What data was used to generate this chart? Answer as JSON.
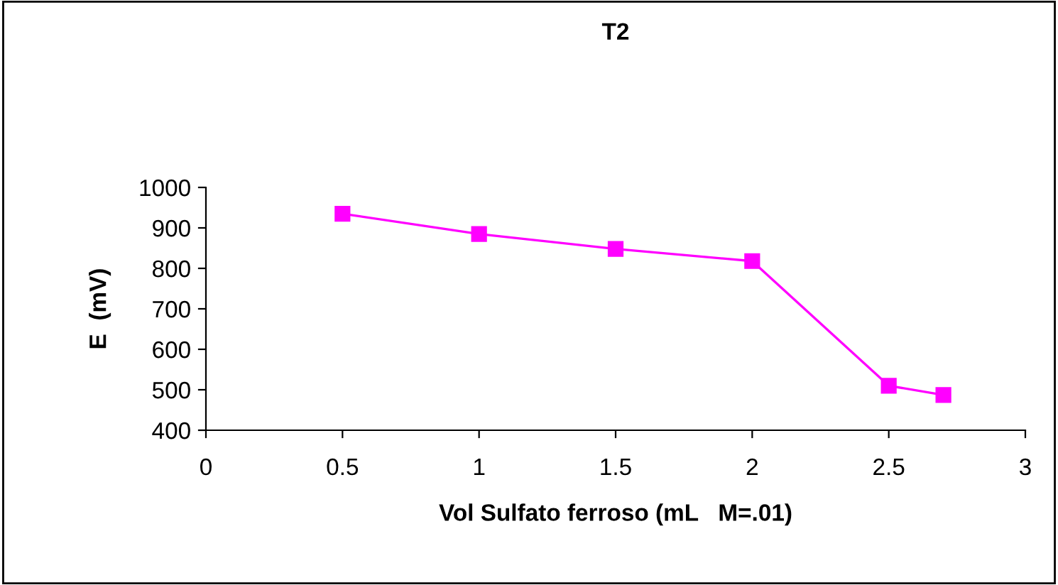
{
  "chart_data": {
    "type": "line",
    "title": "T2",
    "xlabel": "Vol Sulfato ferroso (mL   M=.01)",
    "ylabel": "E  (mV)",
    "x": [
      0.5,
      1,
      1.5,
      2,
      2.5,
      2.7
    ],
    "series": [
      {
        "color": "#ff00ff",
        "values": [
          935,
          885,
          848,
          818,
          510,
          487
        ]
      }
    ],
    "xlim": [
      0,
      3
    ],
    "xticks": [
      0,
      0.5,
      1,
      1.5,
      2,
      2.5,
      3
    ],
    "ylim": [
      400,
      1000
    ],
    "yticks": [
      400,
      500,
      600,
      700,
      800,
      900,
      1000
    ],
    "grid": false,
    "legend": false,
    "marker": "square",
    "line_style": "solid"
  }
}
